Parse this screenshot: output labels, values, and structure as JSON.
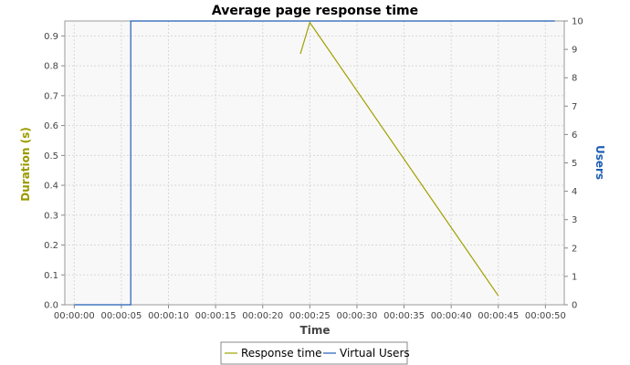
{
  "chart_data": {
    "type": "line",
    "title": "Average page response time",
    "xlabel": "Time",
    "ylabel": "Duration (s)",
    "y2label": "Users",
    "x_ticks": [
      "00:00:00",
      "00:00:05",
      "00:00:10",
      "00:00:15",
      "00:00:20",
      "00:00:25",
      "00:00:30",
      "00:00:35",
      "00:00:40",
      "00:00:45",
      "00:00:50"
    ],
    "xlim": [
      -1,
      52
    ],
    "ylim": [
      0,
      0.95
    ],
    "y_ticks": [
      "0.0",
      "0.1",
      "0.2",
      "0.3",
      "0.4",
      "0.5",
      "0.6",
      "0.7",
      "0.8",
      "0.9"
    ],
    "y2lim": [
      0,
      10
    ],
    "y2_ticks": [
      "0",
      "1",
      "2",
      "3",
      "4",
      "5",
      "6",
      "7",
      "8",
      "9",
      "10"
    ],
    "grid": true,
    "legend_position": "bottom",
    "colors": {
      "response": "#a0a000",
      "users": "#1f5fb4",
      "ylabel": "#9a9a00",
      "y2label": "#1f5fb4",
      "plot_bg": "#f8f8f8",
      "grid": "#d8d8d8"
    },
    "series": [
      {
        "name": "Response time",
        "axis": "left",
        "points": [
          [
            24,
            0.84
          ],
          [
            25,
            0.945
          ],
          [
            45,
            0.03
          ]
        ]
      },
      {
        "name": "Virtual Users",
        "axis": "right",
        "points": [
          [
            0,
            0
          ],
          [
            6,
            0
          ],
          [
            6,
            10
          ],
          [
            51,
            10
          ]
        ]
      }
    ]
  }
}
